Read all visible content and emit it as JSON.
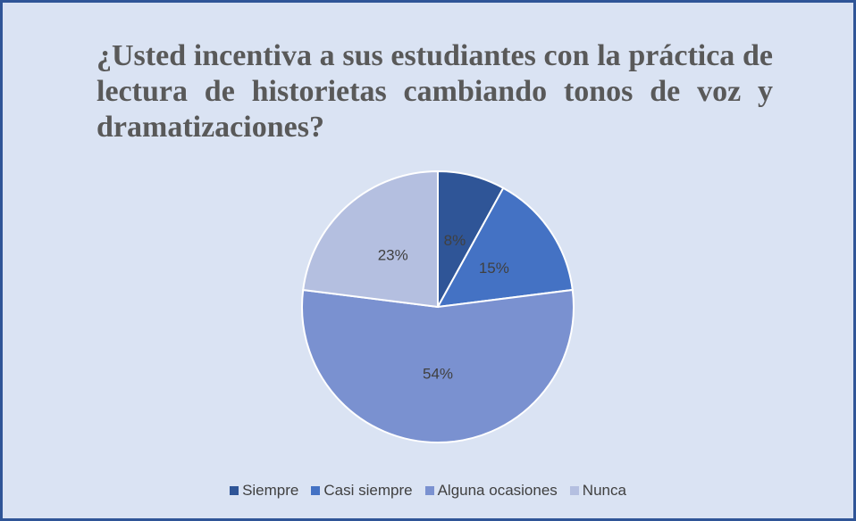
{
  "chart_data": {
    "type": "pie",
    "title": "¿Usted incentiva a sus estudiantes con la práctica de lectura de historietas cambiando tonos de voz y dramatizaciones?",
    "categories": [
      "Siempre",
      "Casi siempre",
      "Alguna ocasiones",
      "Nunca"
    ],
    "values": [
      8,
      15,
      54,
      23
    ],
    "value_labels": [
      "8%",
      "15%",
      "54%",
      "23%"
    ],
    "colors": [
      "#2f5597",
      "#4472c4",
      "#7a91d0",
      "#b4bfe0"
    ],
    "legend": "bottom"
  }
}
